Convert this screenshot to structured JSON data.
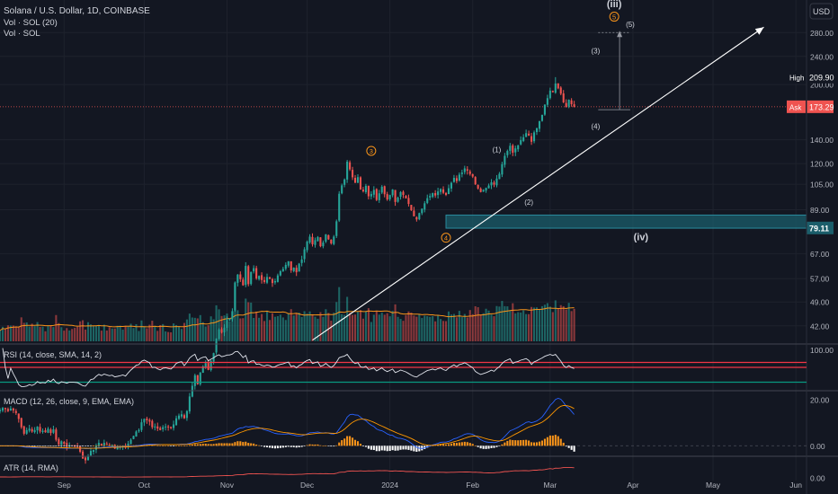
{
  "header": {
    "symbol_line": "Solana / U.S. Dollar, 1D, COINBASE",
    "vol_line_1": "Vol · SOL (20)",
    "vol_line_2": "Vol · SOL",
    "currency_button": "USD"
  },
  "colors": {
    "background": "#131722",
    "up": "#26a69a",
    "down": "#ef5350",
    "grid": "#1e222d",
    "text": "#d1d4dc",
    "trendline": "#ffffff",
    "wave_circle": "#f7931a",
    "zone": "#1b5e6b",
    "rsi_band": "#f23645",
    "rsi_low": "#089981",
    "macd_line": "#2962ff",
    "signal_line": "#ff9800"
  },
  "chart_data": [
    {
      "type": "candlestick",
      "title": "Solana / U.S. Dollar, 1D, COINBASE",
      "x_tick_labels": [
        "Sep",
        "Oct",
        "Nov",
        "Dec",
        "2024",
        "Feb",
        "Mar",
        "Apr",
        "May",
        "Jun"
      ],
      "y_tick_labels": [
        "280.00",
        "240.00",
        "200.00",
        "140.00",
        "120.00",
        "105.00",
        "89.00",
        "79.11",
        "67.00",
        "57.00",
        "49.00",
        "42.00"
      ],
      "y_scale": "log",
      "ylim": [
        38,
        330
      ],
      "x_range": [
        "2023-08-08",
        "2024-06-05"
      ],
      "price_tags": [
        {
          "label": "High",
          "value": "209.90"
        },
        {
          "label": "Ask",
          "value": "173.29"
        }
      ],
      "horizontal_level": {
        "value": "79.11",
        "label": "79.11"
      },
      "support_zone": {
        "low": 79,
        "high": 86,
        "from": "2024-01-22"
      },
      "wave_labels": [
        {
          "text": "(iii)",
          "date": "2024-03-25",
          "price": 330
        },
        {
          "text": "5",
          "date": "2024-03-25",
          "price": 305,
          "circled": true
        },
        {
          "text": "(5)",
          "date": "2024-03-31",
          "price": 290
        },
        {
          "text": "(3)",
          "date": "2024-03-18",
          "price": 245
        },
        {
          "text": "(4)",
          "date": "2024-03-18",
          "price": 150
        },
        {
          "text": "3",
          "date": "2023-12-25",
          "price": 128,
          "circled": true
        },
        {
          "text": "(1)",
          "date": "2024-02-10",
          "price": 129
        },
        {
          "text": "(2)",
          "date": "2024-02-22",
          "price": 92
        },
        {
          "text": "4",
          "date": "2024-01-22",
          "price": 73,
          "circled": true
        },
        {
          "text": "(iv)",
          "date": "2024-04-04",
          "price": 73
        }
      ],
      "candles": {
        "start_date": "2023-08-08",
        "closes": [
          24.4,
          24.7,
          24.5,
          24.2,
          24.6,
          24.3,
          23.9,
          23.0,
          21.8,
          20.9,
          21.4,
          21.6,
          21.2,
          21.4,
          21.9,
          21.2,
          21.3,
          21.1,
          21.6,
          21.0,
          21.5,
          20.1,
          19.5,
          19.9,
          19.6,
          19.2,
          19.4,
          19.4,
          19.3,
          19.2,
          18.6,
          17.8,
          17.6,
          18.1,
          18.7,
          18.8,
          19.3,
          19.7,
          19.4,
          19.7,
          19.5,
          19.3,
          19.4,
          19.0,
          19.1,
          19.2,
          19.3,
          19.1,
          19.6,
          20.1,
          20.6,
          21.2,
          21.4,
          22.5,
          23.0,
          22.8,
          22.6,
          21.8,
          21.9,
          21.6,
          21.4,
          21.8,
          21.9,
          21.8,
          21.7,
          22.2,
          23.1,
          23.5,
          23.7,
          23.1,
          24.2,
          26.6,
          28.5,
          30.5,
          28.8,
          31.0,
          32.3,
          33.0,
          31.6,
          33.5,
          35.2,
          38.7,
          41.0,
          40.2,
          41.5,
          43.6,
          44.0,
          46.2,
          55.6,
          58.5,
          56.8,
          54.6,
          61.9,
          55.0,
          59.5,
          61.0,
          57.1,
          58.0,
          56.5,
          55.8,
          57.6,
          56.9,
          55.4,
          56.1,
          58.2,
          59.8,
          60.7,
          62.3,
          63.8,
          60.1,
          61.2,
          59.4,
          62.8,
          64.5,
          68.9,
          72.4,
          74.8,
          71.2,
          73.1,
          74.6,
          70.3,
          72.0,
          75.9,
          73.5,
          71.6,
          74.8,
          82.6,
          98.7,
          104.2,
          108.3,
          121.5,
          115.6,
          109.8,
          106.0,
          109.9,
          101.4,
          100.3,
          103.9,
          97.1,
          98.6,
          101.2,
          94.8,
          99.0,
          103.3,
          98.4,
          95.1,
          97.9,
          101.5,
          93.6,
          96.3,
          99.8,
          98.0,
          95.8,
          92.4,
          88.7,
          85.3,
          83.6,
          87.1,
          89.6,
          92.8,
          95.9,
          97.3,
          99.1,
          97.6,
          100.2,
          101.8,
          99.3,
          98.0,
          102.3,
          105.9,
          109.4,
          107.1,
          111.7,
          113.2,
          116.3,
          114.6,
          112.2,
          110.3,
          104.9,
          102.1,
          99.8,
          101.2,
          102.5,
          104.1,
          106.3,
          104.7,
          108.9,
          112.3,
          119.5,
          126.1,
          130.2,
          134.6,
          128.7,
          132.4,
          135.1,
          139.6,
          142.3,
          146.1,
          143.9,
          138.2,
          146.8,
          150.9,
          157.8,
          164.5,
          175.6,
          183.2,
          192.4,
          190.5,
          201.4,
          195.2,
          188.6,
          178.3,
          172.9,
          181.4,
          176.2,
          173.3
        ],
        "high": 209.9,
        "last_close": 173.29
      },
      "volume": {
        "title": "Vol · SOL",
        "ma_period": 20
      }
    },
    {
      "type": "line",
      "title": "RSI (14, close, SMA, 14, 2)",
      "y_tick_labels": [
        "100.00"
      ],
      "bands": [
        70,
        60,
        30
      ],
      "ylim": [
        20,
        100
      ]
    },
    {
      "type": "histogram",
      "title": "MACD (12, 26, close, 9, EMA, EMA)",
      "y_tick_labels": [
        "20.00",
        "0.00"
      ],
      "ylim": [
        -3,
        22
      ]
    },
    {
      "type": "line",
      "title": "ATR (14, RMA)",
      "y_tick_labels": [
        "0.00"
      ],
      "ylim": [
        0,
        18
      ]
    }
  ]
}
